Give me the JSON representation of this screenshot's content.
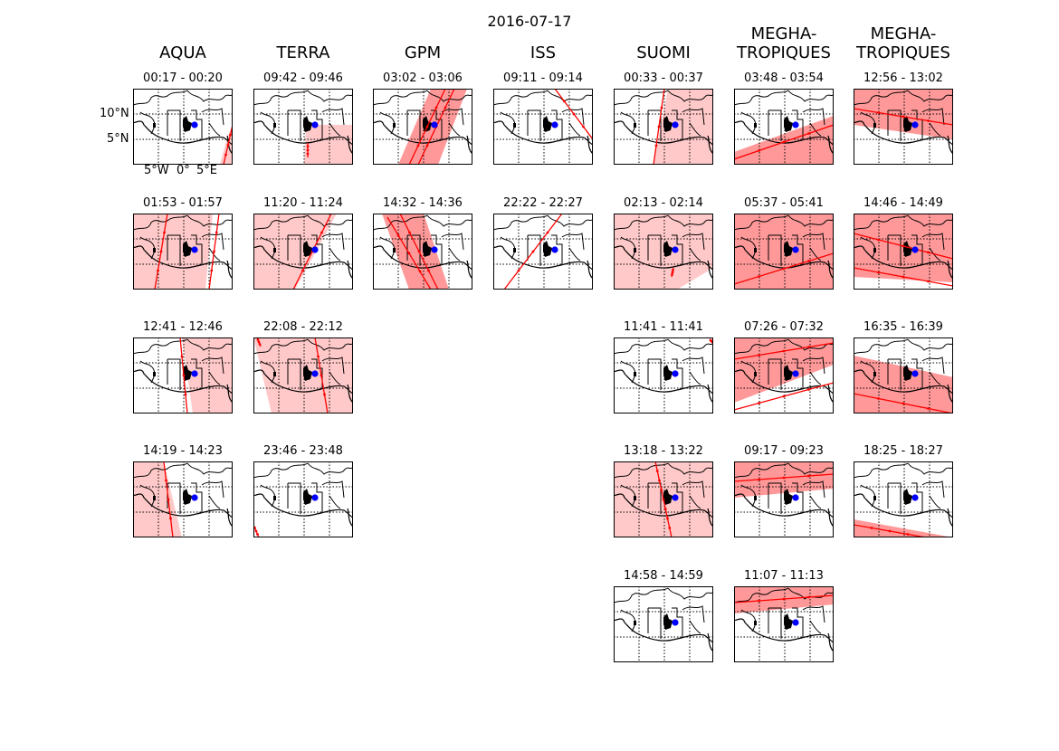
{
  "title": "2016-07-17",
  "axes": {
    "ytick_top": "10°N",
    "ytick_bottom": "5°N",
    "xtick_left": "5°W",
    "xtick_mid": "0°",
    "xtick_right": "5°E"
  },
  "colors": {
    "swath": "#ffc9c9",
    "swath_dark": "#ff8080",
    "track": "#ff0000",
    "site": "#0000ff",
    "coast": "#000000"
  },
  "columns": [
    {
      "name": "AQUA",
      "panels": [
        {
          "time": "00:17 - 00:20"
        },
        {
          "time": "01:53 - 01:57"
        },
        {
          "time": "12:41 - 12:46"
        },
        {
          "time": "14:19 - 14:23"
        }
      ]
    },
    {
      "name": "TERRA",
      "panels": [
        {
          "time": "09:42 - 09:46"
        },
        {
          "time": "11:20 - 11:24"
        },
        {
          "time": "22:08 - 22:12"
        },
        {
          "time": "23:46 - 23:48"
        }
      ]
    },
    {
      "name": "GPM",
      "panels": [
        {
          "time": "03:02 - 03:06"
        },
        {
          "time": "14:32 - 14:36"
        }
      ]
    },
    {
      "name": "ISS",
      "panels": [
        {
          "time": "09:11 - 09:14"
        },
        {
          "time": "22:22 - 22:27"
        }
      ]
    },
    {
      "name": "SUOMI",
      "panels": [
        {
          "time": "00:33 - 00:37"
        },
        {
          "time": "02:13 - 02:14"
        },
        {
          "time": "11:41 - 11:41"
        },
        {
          "time": "13:18 - 13:22"
        },
        {
          "time": "14:58 - 14:59"
        }
      ]
    },
    {
      "name": "MEGHA-\nTROPIQUES",
      "panels": [
        {
          "time": "03:48 - 03:54"
        },
        {
          "time": "05:37 - 05:41"
        },
        {
          "time": "07:26 - 07:32"
        },
        {
          "time": "09:17 - 09:23"
        },
        {
          "time": "11:07 - 11:13"
        }
      ]
    },
    {
      "name": "MEGHA-\nTROPIQUES",
      "panels": [
        {
          "time": "12:56 - 13:02"
        },
        {
          "time": "14:46 - 14:49"
        },
        {
          "time": "16:35 - 16:39"
        },
        {
          "time": "18:25 - 18:27"
        }
      ]
    }
  ]
}
